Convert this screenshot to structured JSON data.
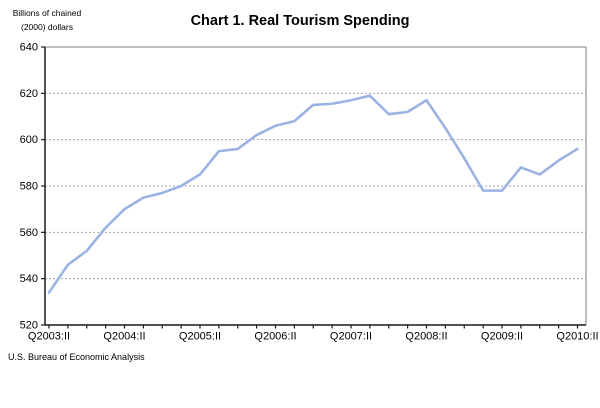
{
  "header": {
    "unit_label_line1": "Billions of chained",
    "unit_label_line2": "(2000) dollars",
    "title": "Chart 1. Real Tourism Spending"
  },
  "footer": {
    "source": "U.S. Bureau of Economic Analysis"
  },
  "chart_data": {
    "type": "line",
    "title": "Chart 1. Real Tourism Spending",
    "ylabel": "Billions of chained (2000) dollars",
    "xlabel": "",
    "ylim": [
      520,
      640
    ],
    "y_tick_step": 20,
    "y_ticks": [
      640,
      620,
      600,
      580,
      560,
      540,
      520
    ],
    "x_tick_labels": [
      "Q2003:II",
      "Q2004:II",
      "Q2005:II",
      "Q2006:II",
      "Q2007:II",
      "Q2008:II",
      "Q2009:II",
      "Q2010:II"
    ],
    "categories": [
      "Q2003:II",
      "Q2003:III",
      "Q2003:IV",
      "Q2004:I",
      "Q2004:II",
      "Q2004:III",
      "Q2004:IV",
      "Q2005:I",
      "Q2005:II",
      "Q2005:III",
      "Q2005:IV",
      "Q2006:I",
      "Q2006:II",
      "Q2006:III",
      "Q2006:IV",
      "Q2007:I",
      "Q2007:II",
      "Q2007:III",
      "Q2007:IV",
      "Q2008:I",
      "Q2008:II",
      "Q2008:III",
      "Q2008:IV",
      "Q2009:I",
      "Q2009:II",
      "Q2009:III",
      "Q2009:IV",
      "Q2010:I",
      "Q2010:II"
    ],
    "values": [
      534,
      546,
      552,
      562,
      570,
      575,
      577,
      580,
      585,
      595,
      596,
      602,
      606,
      608,
      615,
      615.5,
      617,
      619,
      611,
      612,
      617,
      605,
      592,
      578,
      578,
      588,
      585,
      591,
      596
    ],
    "grid": "horizontal-dashed",
    "legend": "none",
    "colors": {
      "line": "#9bb3e3",
      "grid": "#a6a6a6",
      "frame": "#808080",
      "axis": "#1a1a1a",
      "text": "#000000"
    },
    "source": "U.S. Bureau of Economic Analysis"
  }
}
